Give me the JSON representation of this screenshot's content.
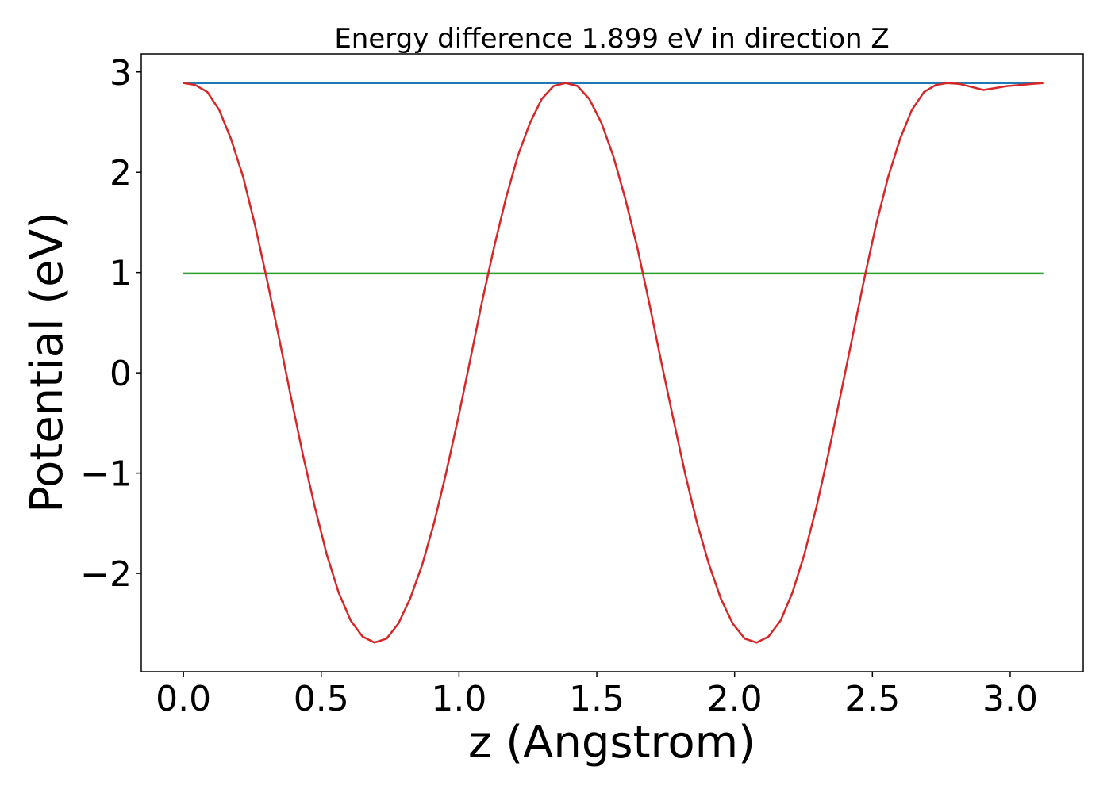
{
  "chart_data": {
    "type": "line",
    "title": "Energy difference 1.899 eV in direction Z",
    "xlabel": "z (Angstrom)",
    "ylabel": "Potential (eV)",
    "xlim": [
      -0.153,
      3.265
    ],
    "ylim": [
      -2.98,
      3.18
    ],
    "x_ticks": [
      0.0,
      0.5,
      1.0,
      1.5,
      2.0,
      2.5,
      3.0
    ],
    "x_tick_labels": [
      "0.0",
      "0.5",
      "1.0",
      "1.5",
      "2.0",
      "2.5",
      "3.0"
    ],
    "y_ticks": [
      -2,
      -1,
      0,
      1,
      2,
      3
    ],
    "y_tick_labels": [
      "−2",
      "−1",
      "0",
      "1",
      "2",
      "3"
    ],
    "grid": false,
    "series": [
      {
        "color": "#1f77b4",
        "x": [
          0.0,
          3.12
        ],
        "y": [
          2.89,
          2.89
        ]
      },
      {
        "color": "#2ca02c",
        "x": [
          0.0,
          3.12
        ],
        "y": [
          0.99,
          0.99
        ]
      },
      {
        "color": "#d62728",
        "x": [
          0.0,
          0.043,
          0.087,
          0.13,
          0.173,
          0.217,
          0.26,
          0.303,
          0.347,
          0.39,
          0.433,
          0.477,
          0.52,
          0.563,
          0.607,
          0.65,
          0.693,
          0.737,
          0.78,
          0.823,
          0.867,
          0.91,
          0.953,
          0.997,
          1.04,
          1.083,
          1.127,
          1.17,
          1.213,
          1.257,
          1.3,
          1.343,
          1.387,
          1.43,
          1.473,
          1.517,
          1.56,
          1.603,
          1.647,
          1.69,
          1.733,
          1.777,
          1.82,
          1.863,
          1.907,
          1.95,
          1.993,
          2.037,
          2.08,
          2.123,
          2.167,
          2.21,
          2.253,
          2.297,
          2.34,
          2.383,
          2.427,
          2.47,
          2.513,
          2.557,
          2.6,
          2.643,
          2.687,
          2.73,
          2.773,
          2.817,
          2.86,
          2.903,
          2.947,
          2.99,
          3.033,
          3.077,
          3.12
        ],
        "y": [
          2.89,
          2.87,
          2.8,
          2.62,
          2.33,
          1.95,
          1.47,
          0.93,
          0.35,
          -0.24,
          -0.81,
          -1.34,
          -1.81,
          -2.19,
          -2.47,
          -2.63,
          -2.69,
          -2.65,
          -2.5,
          -2.25,
          -1.91,
          -1.49,
          -1.0,
          -0.45,
          0.12,
          0.7,
          1.25,
          1.74,
          2.16,
          2.49,
          2.73,
          2.86,
          2.89,
          2.86,
          2.73,
          2.49,
          2.16,
          1.74,
          1.25,
          0.7,
          0.12,
          -0.45,
          -1.0,
          -1.49,
          -1.91,
          -2.25,
          -2.5,
          -2.65,
          -2.69,
          -2.63,
          -2.47,
          -2.19,
          -1.81,
          -1.34,
          -0.81,
          -0.24,
          0.35,
          0.93,
          1.47,
          1.95,
          2.33,
          2.62,
          2.8,
          2.87,
          2.89,
          2.88,
          2.85,
          2.82,
          2.84,
          2.86,
          2.87,
          2.88,
          2.89
        ]
      }
    ]
  }
}
